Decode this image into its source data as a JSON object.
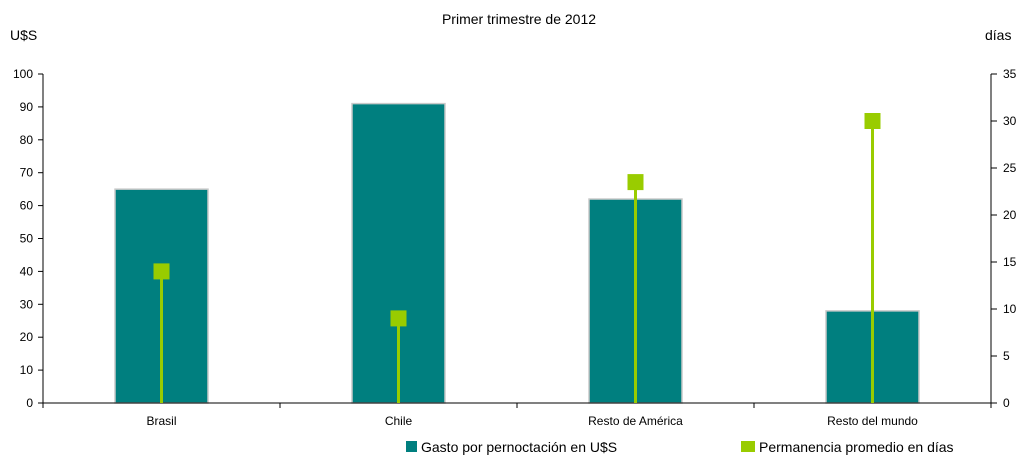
{
  "chart_data": {
    "type": "bar",
    "subtitle": "Primer trimestre de 2012",
    "categories": [
      "Brasil",
      "Chile",
      "Resto de América",
      "Resto del mundo"
    ],
    "y_left": {
      "label": "U$S",
      "min": 0,
      "max": 100,
      "step": 10
    },
    "y_right": {
      "label": "días",
      "min": 0,
      "max": 35,
      "step": 5
    },
    "series": [
      {
        "name": "Gasto por pernoctación en U$S",
        "kind": "bar",
        "axis": "left",
        "values": [
          65,
          91,
          62,
          28
        ],
        "color": "#007F7F"
      },
      {
        "name": "Permanencia promedio en días",
        "kind": "stem",
        "axis": "right",
        "values": [
          14,
          9,
          23.5,
          30
        ],
        "color": "#99CC00"
      }
    ],
    "legend_position": "bottom-right",
    "grid": false
  }
}
